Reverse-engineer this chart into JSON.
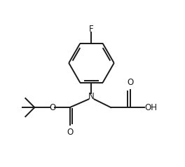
{
  "bg_color": "#ffffff",
  "line_color": "#1a1a1a",
  "line_width": 1.4,
  "font_size": 8.5,
  "fig_width": 2.64,
  "fig_height": 2.38,
  "dpi": 100,
  "xlim": [
    0.0,
    8.5
  ],
  "ylim": [
    1.5,
    9.0
  ]
}
